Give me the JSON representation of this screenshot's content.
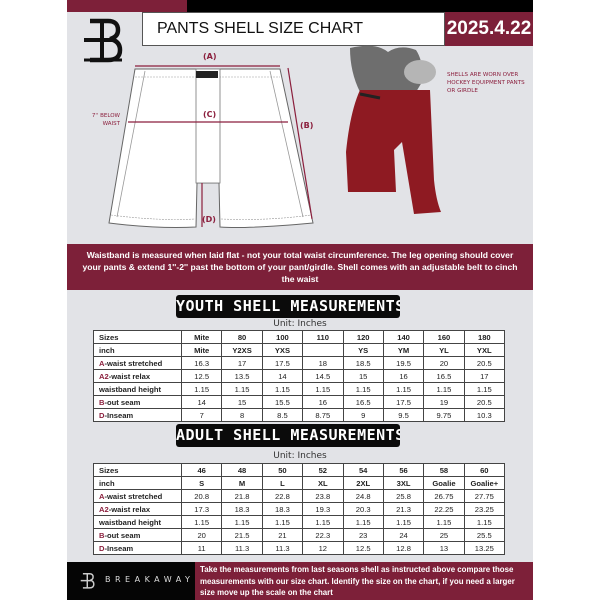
{
  "header": {
    "title": "PANTS SHELL SIZE CHART",
    "date": "2025.4.22",
    "logo": "B"
  },
  "diagram": {
    "labels": {
      "a": "(A)",
      "b": "(B)",
      "c": "(C)",
      "d": "(D)",
      "below_waist": "7'' BELOW WAIST"
    },
    "photo_note": "SHELLS ARE WORN OVER HOCKEY EQUIPMENT PANTS OR GIRDLE"
  },
  "info_banner": "Waistband is measured when laid flat - not your total waist circumference. The leg opening should cover your pants & extend 1''-2'' past the bottom of your pant/girdle. Shell comes with an adjustable belt to cinch the waist",
  "youth": {
    "title": "YOUTH SHELL MEASUREMENTS",
    "unit": "Unit: Inches",
    "rows": [
      {
        "code": "",
        "label": "Sizes",
        "values": [
          "Mite",
          "80",
          "100",
          "110",
          "120",
          "140",
          "160",
          "180"
        ]
      },
      {
        "code": "",
        "label": "inch",
        "values": [
          "Mite",
          "Y2XS",
          "YXS",
          "",
          "YS",
          "YM",
          "YL",
          "YXL"
        ]
      },
      {
        "code": "A",
        "label": "-waist stretched",
        "values": [
          "16.3",
          "17",
          "17.5",
          "18",
          "18.5",
          "19.5",
          "20",
          "20.5"
        ]
      },
      {
        "code": "A2",
        "label": "-waist relax",
        "values": [
          "12.5",
          "13.5",
          "14",
          "14.5",
          "15",
          "16",
          "16.5",
          "17"
        ]
      },
      {
        "code": "",
        "label": "waistband height",
        "values": [
          "1.15",
          "1.15",
          "1.15",
          "1.15",
          "1.15",
          "1.15",
          "1.15",
          "1.15"
        ]
      },
      {
        "code": "B",
        "label": "-out seam",
        "values": [
          "14",
          "15",
          "15.5",
          "16",
          "16.5",
          "17.5",
          "19",
          "20.5"
        ]
      },
      {
        "code": "D",
        "label": "-Inseam",
        "values": [
          "7",
          "8",
          "8.5",
          "8.75",
          "9",
          "9.5",
          "9.75",
          "10.3"
        ]
      }
    ]
  },
  "adult": {
    "title": "ADULT SHELL MEASUREMENTS",
    "unit": "Unit: Inches",
    "rows": [
      {
        "code": "",
        "label": "Sizes",
        "values": [
          "46",
          "48",
          "50",
          "52",
          "54",
          "56",
          "58",
          "60"
        ]
      },
      {
        "code": "",
        "label": "inch",
        "values": [
          "S",
          "M",
          "L",
          "XL",
          "2XL",
          "3XL",
          "Goalie",
          "Goalie+"
        ]
      },
      {
        "code": "A",
        "label": "-waist stretched",
        "values": [
          "20.8",
          "21.8",
          "22.8",
          "23.8",
          "24.8",
          "25.8",
          "26.75",
          "27.75"
        ]
      },
      {
        "code": "A2",
        "label": "-waist relax",
        "values": [
          "17.3",
          "18.3",
          "18.3",
          "19.3",
          "20.3",
          "21.3",
          "22.25",
          "23.25"
        ]
      },
      {
        "code": "",
        "label": "waistband height",
        "values": [
          "1.15",
          "1.15",
          "1.15",
          "1.15",
          "1.15",
          "1.15",
          "1.15",
          "1.15"
        ]
      },
      {
        "code": "B",
        "label": "-out seam",
        "values": [
          "20",
          "21.5",
          "21",
          "22.3",
          "23",
          "24",
          "25",
          "25.5"
        ]
      },
      {
        "code": "D",
        "label": "-Inseam",
        "values": [
          "11",
          "11.3",
          "11.3",
          "12",
          "12.5",
          "12.8",
          "13",
          "13.25"
        ]
      }
    ]
  },
  "footer": {
    "brand": "BREAKAWAY",
    "note": "Take the measurements from last seasons shell as instructed above compare those measurements  with our size chart. Identify the size on the chart, if you need a larger size move up the scale on the chart"
  },
  "colors": {
    "maroon": "#7d2039",
    "black": "#0b0b0b",
    "background": "#e2e3e7",
    "shell_red": "#8e1a22"
  }
}
